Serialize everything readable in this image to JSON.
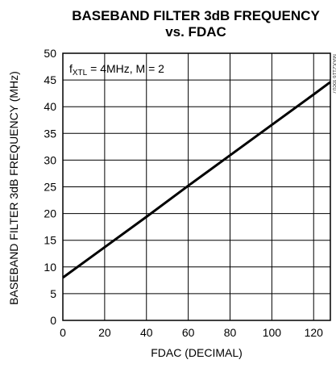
{
  "chart_data": {
    "type": "line",
    "title_line1": "BASEBAND FILTER 3dB FREQUENCY",
    "title_line2": "vs. FDAC",
    "xlabel": "FDAC (DECIMAL)",
    "ylabel": "BASEBAND FILTER 3dB FREQUENCY (MHz)",
    "xlim": [
      0,
      128
    ],
    "ylim": [
      0,
      50
    ],
    "xticks": [
      0,
      20,
      40,
      60,
      80,
      100,
      120
    ],
    "yticks": [
      0,
      5,
      10,
      15,
      20,
      25,
      30,
      35,
      40,
      45,
      50
    ],
    "grid": true,
    "annotation": {
      "prefix": "f",
      "subscript": "XTL",
      "suffix": " = 4MHz, M = 2"
    },
    "side_id": "MAX2116 toc07",
    "series": [
      {
        "x": [
          0,
          20,
          40,
          60,
          80,
          100,
          120,
          128
        ],
        "values": [
          8.0,
          13.7,
          19.4,
          25.2,
          30.9,
          36.6,
          42.3,
          44.6
        ]
      }
    ]
  }
}
